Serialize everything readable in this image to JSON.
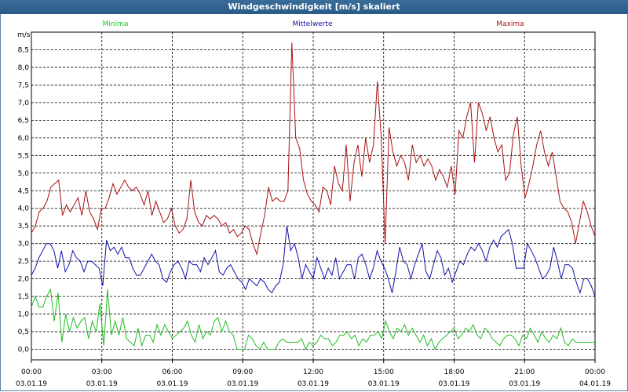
{
  "window": {
    "title": "Windgeschwindigkeit [m/s] skaliert"
  },
  "colors": {
    "minima": "#22bb22",
    "mittel": "#1111aa",
    "maxima": "#aa1111",
    "grid": "#000000"
  },
  "chart_data": {
    "type": "line",
    "title": "Windgeschwindigkeit [m/s] skaliert",
    "ylabel": "m/s",
    "xlabel": "",
    "ylim": [
      -0.3,
      9.0
    ],
    "xlim": [
      0,
      24
    ],
    "y_ticks": [
      "0,0",
      "0,5",
      "1,0",
      "1,5",
      "2,0",
      "2,5",
      "3,0",
      "3,5",
      "4,0",
      "4,5",
      "5,0",
      "5,5",
      "6,0",
      "6,5",
      "7,0",
      "7,5",
      "8,0",
      "8,5"
    ],
    "x_ticks": [
      {
        "time": "00:00",
        "date": "03.01.19"
      },
      {
        "time": "03:00",
        "date": "03.01.19"
      },
      {
        "time": "06:00",
        "date": "03.01.19"
      },
      {
        "time": "09:00",
        "date": "03.01.19"
      },
      {
        "time": "12:00",
        "date": "03.01.19"
      },
      {
        "time": "15:00",
        "date": "03.01.19"
      },
      {
        "time": "18:00",
        "date": "03.01.19"
      },
      {
        "time": "21:00",
        "date": "03.01.19"
      },
      {
        "time": "00:00",
        "date": "04.01.19"
      }
    ],
    "series": [
      {
        "name": "Minima",
        "values": [
          1.2,
          1.5,
          1.2,
          1.2,
          1.5,
          1.7,
          0.8,
          1.6,
          0.2,
          1.0,
          0.5,
          0.9,
          0.6,
          0.8,
          0.9,
          0.3,
          0.8,
          0.5,
          1.3,
          0.1,
          1.7,
          0.4,
          0.8,
          0.4,
          0.9,
          0.3,
          0.2,
          0.1,
          0.6,
          0.1,
          0.4,
          0.4,
          0.2,
          0.7,
          0.4,
          0.7,
          0.5,
          0.3,
          0.4,
          0.5,
          0.6,
          0.8,
          0.4,
          0.2,
          0.7,
          0.3,
          0.5,
          0.4,
          0.8,
          0.9,
          0.5,
          0.8,
          0.5,
          0.4,
          0.0,
          0.0,
          0.0,
          0.4,
          0.3,
          0.1,
          0.0,
          0.2,
          0.0,
          0.0,
          0.0,
          0.2,
          0.3,
          0.2,
          0.2,
          0.2,
          0.2,
          0.3,
          0.0,
          0.2,
          0.1,
          0.2,
          0.4,
          0.3,
          0.3,
          0.1,
          0.2,
          0.4,
          0.4,
          0.5,
          0.3,
          0.4,
          0.1,
          0.3,
          0.2,
          0.4,
          0.4,
          0.5,
          0.3,
          0.8,
          0.5,
          0.3,
          0.6,
          0.5,
          0.7,
          0.4,
          0.6,
          0.4,
          0.2,
          0.4,
          0.1,
          0.3,
          0.0,
          0.2,
          0.3,
          0.4,
          0.5,
          0.6,
          0.3,
          0.4,
          0.6,
          0.5,
          0.7,
          0.4,
          0.3,
          0.6,
          0.5,
          0.3,
          0.2,
          0.1,
          0.3,
          0.4,
          0.4,
          0.3,
          0.1,
          0.4,
          0.3,
          0.6,
          0.4,
          0.2,
          0.5,
          0.3,
          0.2,
          0.4,
          0.3,
          0.6,
          0.2,
          0.1,
          0.3,
          0.2,
          0.2,
          0.2,
          0.2,
          0.2,
          0.2
        ],
        "color_key": "minima"
      },
      {
        "name": "Mittelwerte",
        "values": [
          2.1,
          2.3,
          2.6,
          2.8,
          3.0,
          3.0,
          2.8,
          2.3,
          2.8,
          2.2,
          2.4,
          2.8,
          2.6,
          2.5,
          2.2,
          2.5,
          2.5,
          2.4,
          2.3,
          1.8,
          3.1,
          2.8,
          2.9,
          2.7,
          2.9,
          2.6,
          2.6,
          2.3,
          2.1,
          2.1,
          2.3,
          2.5,
          2.7,
          2.5,
          2.4,
          2.0,
          1.9,
          2.2,
          2.4,
          2.5,
          2.3,
          2.0,
          2.5,
          2.4,
          2.4,
          2.2,
          2.6,
          2.4,
          2.6,
          2.8,
          2.2,
          2.1,
          2.3,
          2.4,
          2.2,
          2.0,
          1.9,
          1.7,
          2.0,
          1.9,
          1.8,
          2.0,
          1.9,
          1.7,
          1.6,
          1.8,
          1.9,
          2.4,
          3.5,
          2.8,
          3.0,
          2.6,
          2.0,
          2.4,
          2.2,
          2.0,
          2.6,
          2.3,
          2.0,
          2.3,
          2.1,
          2.6,
          2.0,
          2.2,
          2.4,
          2.4,
          2.0,
          2.6,
          2.7,
          2.4,
          2.0,
          2.3,
          2.8,
          2.5,
          2.3,
          2.0,
          1.6,
          2.2,
          2.9,
          2.5,
          2.4,
          2.0,
          2.4,
          2.7,
          3.0,
          2.2,
          2.0,
          2.4,
          2.8,
          2.6,
          2.1,
          2.3,
          1.9,
          2.2,
          2.5,
          2.4,
          2.7,
          2.9,
          2.8,
          3.0,
          2.8,
          2.5,
          2.9,
          3.1,
          2.9,
          3.2,
          3.3,
          3.4,
          3.0,
          2.3,
          2.3,
          2.3,
          3.0,
          2.8,
          2.6,
          2.3,
          2.0,
          2.1,
          2.3,
          2.9,
          2.5,
          2.0,
          2.4,
          2.4,
          2.3,
          1.9,
          1.6,
          2.0,
          2.0,
          1.8,
          1.5
        ],
        "color_key": "mittel"
      },
      {
        "name": "Maxima",
        "values": [
          3.3,
          3.5,
          3.9,
          4.0,
          4.2,
          4.6,
          4.7,
          4.8,
          3.8,
          4.1,
          3.9,
          4.1,
          4.3,
          3.8,
          4.5,
          3.9,
          3.7,
          3.4,
          4.0,
          4.0,
          4.3,
          4.7,
          4.4,
          4.6,
          4.8,
          4.6,
          4.5,
          4.6,
          4.4,
          4.1,
          4.5,
          3.8,
          4.2,
          3.9,
          3.6,
          3.7,
          4.0,
          3.5,
          3.3,
          3.4,
          3.7,
          4.8,
          3.9,
          3.6,
          3.5,
          3.8,
          3.7,
          3.8,
          3.7,
          3.5,
          3.6,
          3.3,
          3.4,
          3.2,
          3.3,
          3.5,
          3.4,
          3.0,
          2.7,
          3.3,
          3.8,
          4.6,
          4.2,
          4.3,
          4.2,
          4.2,
          4.5,
          8.7,
          6.0,
          5.7,
          4.8,
          4.4,
          4.2,
          4.1,
          3.9,
          4.6,
          4.5,
          4.1,
          5.2,
          4.7,
          4.5,
          5.8,
          4.2,
          5.3,
          5.8,
          4.9,
          6.0,
          5.3,
          5.8,
          7.6,
          6.0,
          3.0,
          6.3,
          5.6,
          5.2,
          5.5,
          5.3,
          4.8,
          5.8,
          5.3,
          5.5,
          5.2,
          5.4,
          5.2,
          4.8,
          5.1,
          4.9,
          4.6,
          5.2,
          4.4,
          6.2,
          6.0,
          6.6,
          7.0,
          5.3,
          7.0,
          6.7,
          6.2,
          6.6,
          6.0,
          5.6,
          5.8,
          4.8,
          5.0,
          6.1,
          6.6,
          5.2,
          4.3,
          4.7,
          5.2,
          5.8,
          6.2,
          5.6,
          5.2,
          5.6,
          4.9,
          4.2,
          4.0,
          3.9,
          3.6,
          3.0,
          3.6,
          4.2,
          3.9,
          3.5,
          3.2
        ],
        "color_key": "maxima"
      }
    ]
  }
}
